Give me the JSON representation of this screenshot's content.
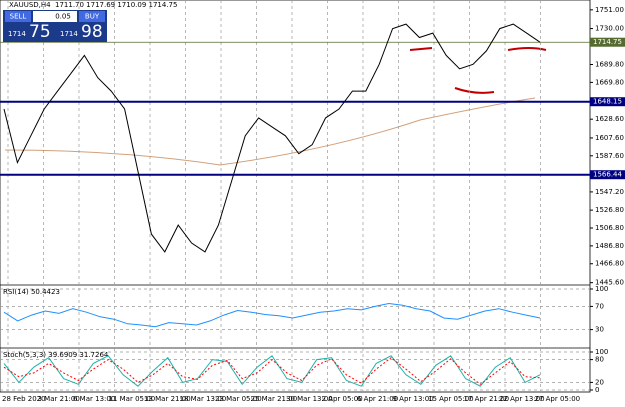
{
  "header": {
    "symbol": "XAUUSD,H4",
    "ohlc": "1711.70 1717.69 1710.09 1714.75",
    "sell": "SELL",
    "lot": "0.05",
    "buy": "BUY",
    "bid_big": "1714",
    "bid_small": "75",
    "ask_big": "1714",
    "ask_small": "98"
  },
  "chart_data": [
    {
      "type": "line",
      "ylim": [
        1443,
        1762
      ],
      "color": "#000000",
      "values": [
        1640,
        1580,
        1610,
        1640,
        1660,
        1680,
        1700,
        1675,
        1660,
        1640,
        1570,
        1500,
        1480,
        1510,
        1490,
        1480,
        1510,
        1560,
        1610,
        1630,
        1620,
        1610,
        1590,
        1600,
        1630,
        1640,
        1660,
        1660,
        1690,
        1730,
        1735,
        1720,
        1725,
        1700,
        1685,
        1690,
        1705,
        1730,
        1735,
        1725,
        1714.75
      ],
      "yticks": [
        {
          "value": 1751,
          "label": "1751.00"
        },
        {
          "value": 1730,
          "label": "1730.00"
        },
        {
          "value": 1689.8,
          "label": "1689.80"
        },
        {
          "value": 1669.8,
          "label": "1669.80"
        },
        {
          "value": 1628.6,
          "label": "1628.60"
        },
        {
          "value": 1607.6,
          "label": "1607.60"
        },
        {
          "value": 1587.6,
          "label": "1587.60"
        },
        {
          "value": 1547.2,
          "label": "1547.20"
        },
        {
          "value": 1526.8,
          "label": "1526.80"
        },
        {
          "value": 1506.8,
          "label": "1506.80"
        },
        {
          "value": 1486.8,
          "label": "1486.80"
        },
        {
          "value": 1466.8,
          "label": "1466.80"
        },
        {
          "value": 1445.6,
          "label": "1445.60"
        }
      ],
      "levels": [
        {
          "value": 1714.75,
          "label": "1714.75",
          "color": "#556b2f"
        },
        {
          "value": 1648.15,
          "label": "1648.15",
          "color": "#000080"
        },
        {
          "value": 1566.44,
          "label": "1566.44",
          "color": "#000080"
        }
      ],
      "x_labels": [
        "28 Feb 2020",
        "3 Mar 21:00",
        "6 Mar 13:00",
        "11 Mar 05:00",
        "13 Mar 21:00",
        "18 Mar 13:00",
        "23 Mar 05:00",
        "25 Mar 21:00",
        "30 Mar 13:00",
        "2 Apr 05:00",
        "6 Apr 21:00",
        "9 Apr 13:00",
        "15 Apr 05:00",
        "17 Apr 21:00",
        "22 Apr 13:00",
        "27 Apr 05:00"
      ]
    },
    {
      "type": "line",
      "title": "RSI(14) 50.4423",
      "ylim": [
        0,
        100
      ],
      "yticks": [
        100,
        70,
        30
      ],
      "color": "#1e90ff",
      "values": [
        60,
        45,
        55,
        62,
        58,
        66,
        60,
        52,
        48,
        40,
        38,
        35,
        42,
        40,
        38,
        45,
        55,
        63,
        60,
        56,
        54,
        50,
        55,
        60,
        62,
        66,
        64,
        70,
        75,
        72,
        66,
        62,
        50,
        48,
        55,
        62,
        66,
        60,
        55,
        50
      ]
    },
    {
      "type": "line",
      "title": "Stoch(5,3,3) 39.6909 31.7264",
      "ylim": [
        0,
        100
      ],
      "yticks": [
        100,
        80,
        20,
        0
      ],
      "series": [
        {
          "name": "main",
          "color": "#20b2aa",
          "values": [
            70,
            20,
            60,
            85,
            30,
            15,
            70,
            90,
            40,
            10,
            50,
            85,
            20,
            30,
            80,
            75,
            15,
            60,
            90,
            30,
            20,
            80,
            85,
            25,
            10,
            70,
            90,
            40,
            15,
            65,
            90,
            30,
            10,
            60,
            85,
            20,
            40
          ]
        },
        {
          "name": "signal",
          "color": "#ff0000",
          "values": [
            60,
            35,
            45,
            70,
            45,
            25,
            55,
            80,
            55,
            20,
            40,
            70,
            35,
            28,
            65,
            78,
            30,
            45,
            80,
            45,
            25,
            65,
            82,
            40,
            18,
            55,
            85,
            55,
            22,
            50,
            82,
            45,
            15,
            45,
            75,
            35,
            32
          ]
        }
      ]
    }
  ]
}
